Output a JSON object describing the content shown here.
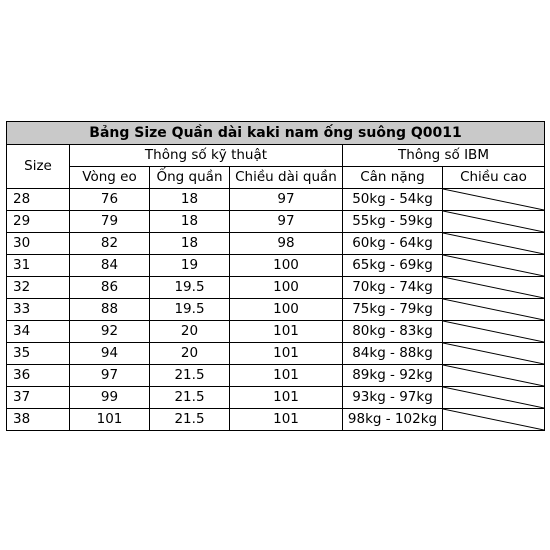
{
  "title": "Bảng Size Quần dài kaki nam ống suông Q0011",
  "headers": {
    "size": "Size",
    "group_spec": "Thông số kỹ thuật",
    "group_ibm": "Thông số IBM",
    "columns": [
      "Vòng eo",
      "Ống quần",
      "Chiều dài quần",
      "Cân nặng",
      "Chiều cao"
    ]
  },
  "rows": [
    {
      "size": "28",
      "waist": "76",
      "leg": "18",
      "length": "97",
      "weight": "50kg - 54kg",
      "height": ""
    },
    {
      "size": "29",
      "waist": "79",
      "leg": "18",
      "length": "97",
      "weight": "55kg - 59kg",
      "height": ""
    },
    {
      "size": "30",
      "waist": "82",
      "leg": "18",
      "length": "98",
      "weight": "60kg - 64kg",
      "height": ""
    },
    {
      "size": "31",
      "waist": "84",
      "leg": "19",
      "length": "100",
      "weight": "65kg - 69kg",
      "height": ""
    },
    {
      "size": "32",
      "waist": "86",
      "leg": "19.5",
      "length": "100",
      "weight": "70kg - 74kg",
      "height": ""
    },
    {
      "size": "33",
      "waist": "88",
      "leg": "19.5",
      "length": "100",
      "weight": "75kg - 79kg",
      "height": ""
    },
    {
      "size": "34",
      "waist": "92",
      "leg": "20",
      "length": "101",
      "weight": "80kg - 83kg",
      "height": ""
    },
    {
      "size": "35",
      "waist": "94",
      "leg": "20",
      "length": "101",
      "weight": "84kg - 88kg",
      "height": ""
    },
    {
      "size": "36",
      "waist": "97",
      "leg": "21.5",
      "length": "101",
      "weight": "89kg - 92kg",
      "height": ""
    },
    {
      "size": "37",
      "waist": "99",
      "leg": "21.5",
      "length": "101",
      "weight": "93kg - 97kg",
      "height": ""
    },
    {
      "size": "38",
      "waist": "101",
      "leg": "21.5",
      "length": "101",
      "weight": "98kg - 102kg",
      "height": ""
    }
  ],
  "colors": {
    "title_bg": "#c9c9c9",
    "border": "#000000"
  }
}
